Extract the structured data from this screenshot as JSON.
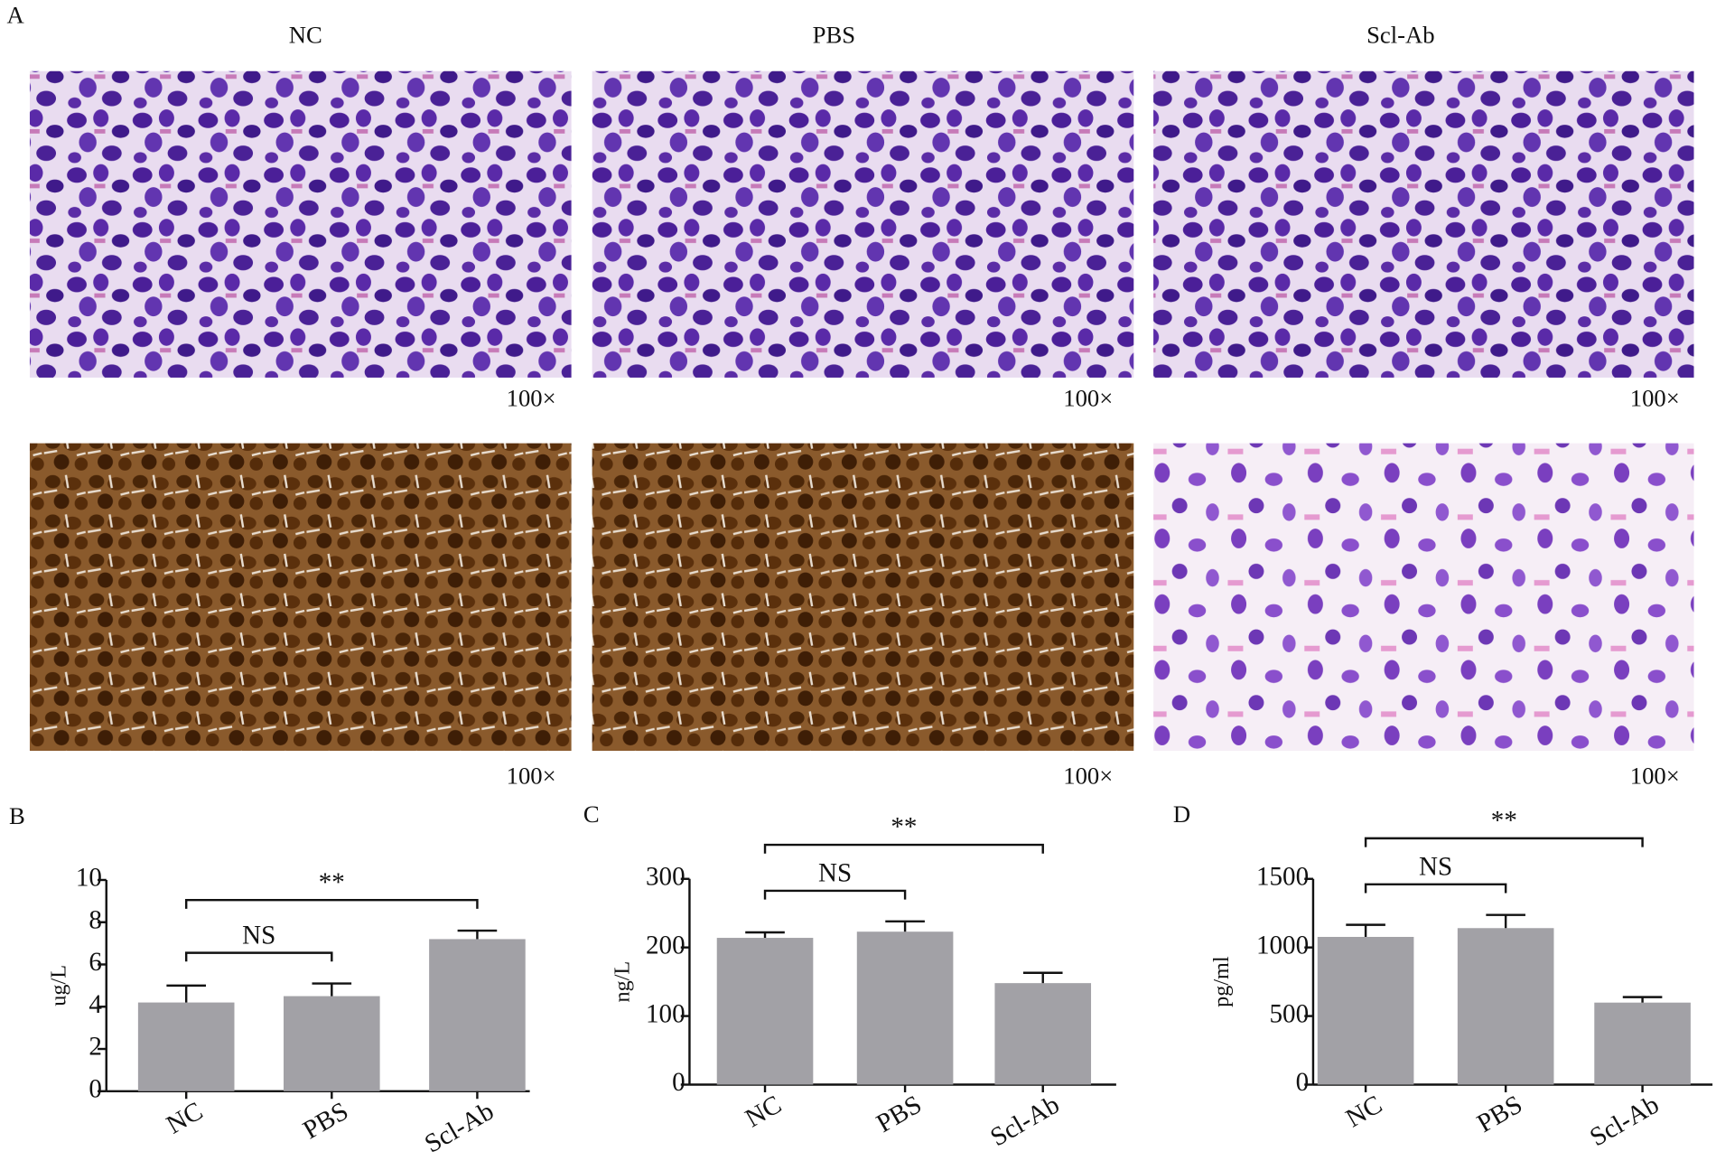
{
  "panel_labels": [
    "A",
    "B",
    "C",
    "D"
  ],
  "micrographs": {
    "columns": [
      "NC",
      "PBS",
      "Scl-Ab"
    ],
    "magnifications": [
      [
        "100×",
        "100×",
        "100×"
      ],
      [
        "100×",
        "100×",
        "100×"
      ]
    ]
  },
  "chart_data": [
    {
      "type": "bar",
      "y_label": "ug/L",
      "categories": [
        "NC",
        "PBS",
        "Scl-Ab"
      ],
      "values": [
        4.2,
        4.5,
        7.2
      ],
      "errors": [
        0.8,
        0.6,
        0.4
      ],
      "color": "#a2a1a6",
      "ylim": [
        0,
        10
      ],
      "yticks": [
        0,
        2,
        4,
        6,
        8,
        10
      ],
      "comparisons": [
        {
          "label": "NS",
          "from": 0,
          "to": 1
        },
        {
          "label": "**",
          "from": 0,
          "to": 2
        }
      ]
    },
    {
      "type": "bar",
      "y_label": "ng/L",
      "categories": [
        "NC",
        "PBS",
        "Scl-Ab"
      ],
      "values": [
        214,
        223,
        148
      ],
      "errors": [
        8,
        15,
        15
      ],
      "color": "#a2a1a6",
      "ylim": [
        0,
        300
      ],
      "yticks": [
        0,
        100,
        200,
        300
      ],
      "comparisons": [
        {
          "label": "NS",
          "from": 0,
          "to": 1
        },
        {
          "label": "**",
          "from": 0,
          "to": 2
        }
      ]
    },
    {
      "type": "bar",
      "y_label": "pg/ml",
      "categories": [
        "NC",
        "PBS",
        "Scl-Ab"
      ],
      "values": [
        1077,
        1141,
        598
      ],
      "errors": [
        88,
        96,
        40
      ],
      "color": "#a2a1a6",
      "ylim": [
        0,
        1500
      ],
      "yticks": [
        0,
        500,
        1000,
        1500
      ],
      "comparisons": [
        {
          "label": "NS",
          "from": 0,
          "to": 1
        },
        {
          "label": "**",
          "from": 0,
          "to": 2
        }
      ]
    }
  ]
}
